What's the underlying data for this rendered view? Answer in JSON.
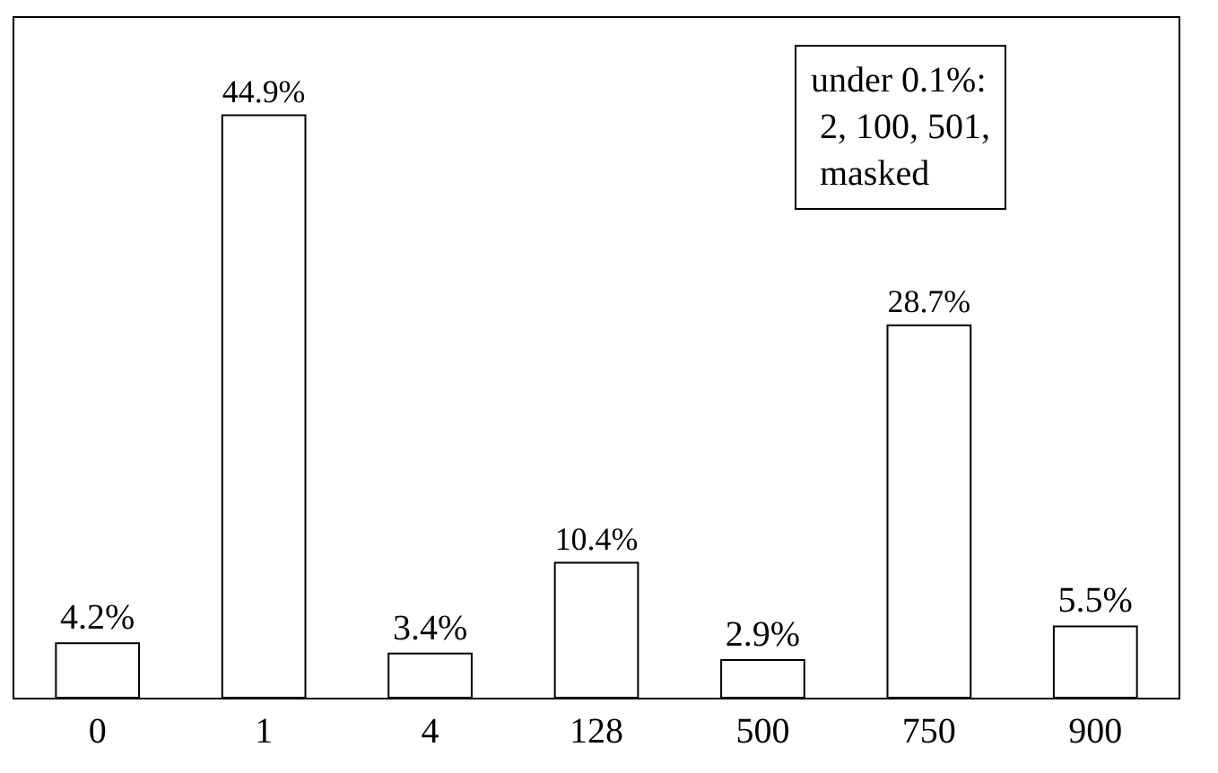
{
  "chart_data": {
    "type": "bar",
    "categories": [
      "0",
      "1",
      "4",
      "128",
      "500",
      "750",
      "900"
    ],
    "values": [
      4.2,
      44.9,
      3.4,
      10.4,
      2.9,
      28.7,
      5.5
    ],
    "value_labels": [
      "4.2%",
      "44.9%",
      "3.4%",
      "10.4%",
      "2.9%",
      "28.7%",
      "5.5%"
    ],
    "color": "#ffffff",
    "ylim": [
      0,
      52.4
    ],
    "tick_labels": "x",
    "grid": false,
    "legend": false,
    "annotations": [
      "under 0.1%:\n 2, 100, 501,\n masked"
    ]
  }
}
